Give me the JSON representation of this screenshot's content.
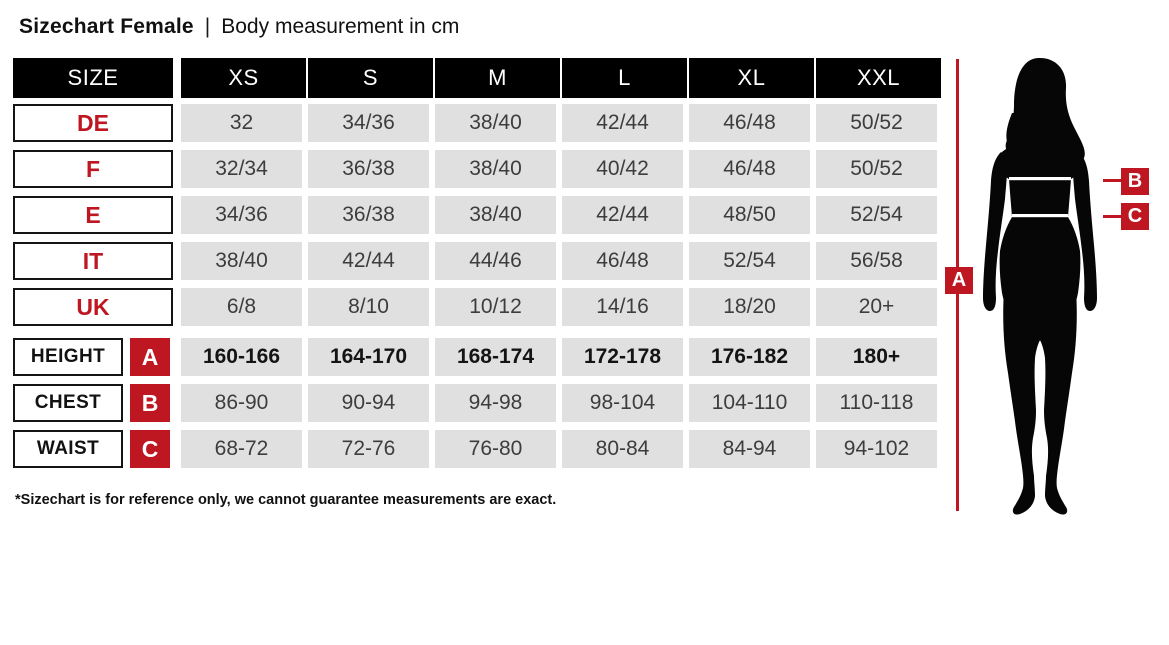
{
  "title": {
    "main": "Sizechart Female",
    "separator": "|",
    "sub": "Body measurement in cm"
  },
  "chart_data": {
    "type": "table",
    "title": "Sizechart Female | Body measurement in cm",
    "header_row": {
      "label": "SIZE",
      "columns": [
        "XS",
        "S",
        "M",
        "L",
        "XL",
        "XXL"
      ]
    },
    "size_rows": [
      {
        "label": "DE",
        "values": [
          "32",
          "34/36",
          "38/40",
          "42/44",
          "46/48",
          "50/52"
        ]
      },
      {
        "label": "F",
        "values": [
          "32/34",
          "36/38",
          "38/40",
          "40/42",
          "46/48",
          "50/52"
        ]
      },
      {
        "label": "E",
        "values": [
          "34/36",
          "36/38",
          "38/40",
          "42/44",
          "48/50",
          "52/54"
        ]
      },
      {
        "label": "IT",
        "values": [
          "38/40",
          "42/44",
          "44/46",
          "46/48",
          "52/54",
          "56/58"
        ]
      },
      {
        "label": "UK",
        "values": [
          "6/8",
          "8/10",
          "10/12",
          "14/16",
          "18/20",
          "20+"
        ]
      }
    ],
    "measurement_rows": [
      {
        "label": "HEIGHT",
        "marker": "A",
        "bold": true,
        "values": [
          "160-166",
          "164-170",
          "168-174",
          "172-178",
          "176-182",
          "180+"
        ]
      },
      {
        "label": "CHEST",
        "marker": "B",
        "bold": false,
        "values": [
          "86-90",
          "90-94",
          "94-98",
          "98-104",
          "104-110",
          "110-118"
        ]
      },
      {
        "label": "WAIST",
        "marker": "C",
        "bold": false,
        "values": [
          "68-72",
          "72-76",
          "76-80",
          "80-84",
          "84-94",
          "94-102"
        ]
      }
    ]
  },
  "figure": {
    "markers": {
      "a": "A",
      "b": "B",
      "c": "C"
    }
  },
  "footnote": "*Sizechart is for reference only, we cannot guarantee measurements are exact.",
  "colors": {
    "accent_red": "#BE1722",
    "cell_gray": "#E0E0E0",
    "header_black": "#000000"
  }
}
